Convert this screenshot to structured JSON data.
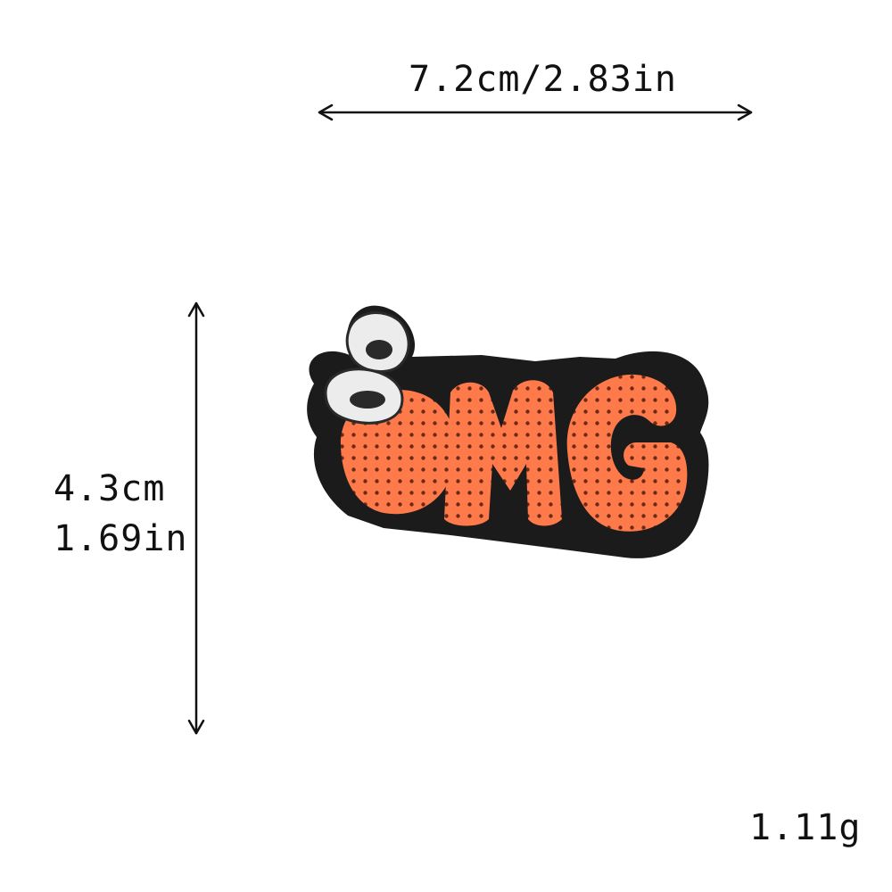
{
  "dimensions": {
    "width_label": "7.2cm/2.83in",
    "height_cm": "4.3cm",
    "height_in": "1.69in",
    "weight": "1.11g"
  },
  "product": {
    "patch_text": "OMG",
    "colors": {
      "sequin": "#ff7a4a",
      "border": "#1a1a1a",
      "eyes": "#e9e9e9"
    }
  }
}
